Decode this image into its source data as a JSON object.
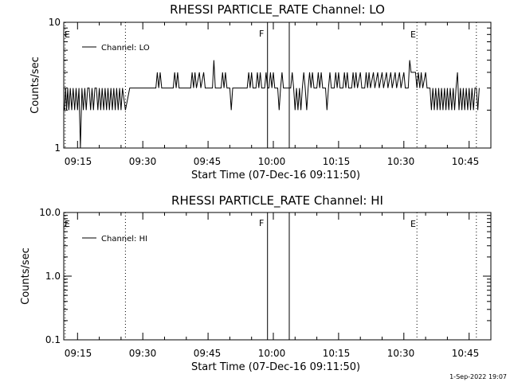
{
  "chart_data": [
    {
      "type": "line",
      "title": "RHESSI PARTICLE_RATE Channel: LO",
      "xlabel": "Start Time (07-Dec-16 09:11:50)",
      "ylabel": "Counts/sec",
      "yscale": "log",
      "ylim": [
        1,
        10
      ],
      "xlim": [
        "09:11:50",
        "10:50:00"
      ],
      "x_tick_labels": [
        "09:15",
        "09:30",
        "09:45",
        "10:00",
        "10:15",
        "10:30",
        "10:45"
      ],
      "y_tick_labels": [
        "1",
        "10"
      ],
      "legend": {
        "placement": "top-left",
        "label": "Channel: LO"
      },
      "series": [
        {
          "name": "Channel: LO",
          "points": [
            [
              "09:12:00",
              2
            ],
            [
              "09:12:15",
              3
            ],
            [
              "09:12:30",
              2
            ],
            [
              "09:12:45",
              3
            ],
            [
              "09:13:00",
              2
            ],
            [
              "09:13:20",
              3
            ],
            [
              "09:13:40",
              2
            ],
            [
              "09:14:00",
              3
            ],
            [
              "09:14:20",
              2
            ],
            [
              "09:14:40",
              3
            ],
            [
              "09:15:00",
              2
            ],
            [
              "09:15:20",
              3
            ],
            [
              "09:15:40",
              1
            ],
            [
              "09:16:00",
              3
            ],
            [
              "09:16:20",
              2
            ],
            [
              "09:16:40",
              3
            ],
            [
              "09:17:00",
              2
            ],
            [
              "09:17:20",
              3
            ],
            [
              "09:17:40",
              3
            ],
            [
              "09:18:00",
              2
            ],
            [
              "09:18:20",
              3
            ],
            [
              "09:18:40",
              2
            ],
            [
              "09:19:00",
              3
            ],
            [
              "09:19:20",
              3
            ],
            [
              "09:19:40",
              2
            ],
            [
              "09:20:00",
              3
            ],
            [
              "09:20:20",
              2
            ],
            [
              "09:20:40",
              3
            ],
            [
              "09:21:00",
              2
            ],
            [
              "09:21:20",
              3
            ],
            [
              "09:21:40",
              2
            ],
            [
              "09:22:00",
              3
            ],
            [
              "09:22:20",
              2
            ],
            [
              "09:22:40",
              3
            ],
            [
              "09:23:00",
              2
            ],
            [
              "09:23:20",
              3
            ],
            [
              "09:23:40",
              2
            ],
            [
              "09:24:00",
              3
            ],
            [
              "09:24:20",
              2
            ],
            [
              "09:24:40",
              3
            ],
            [
              "09:25:00",
              2
            ],
            [
              "09:25:20",
              3
            ],
            [
              "09:26:00",
              2
            ],
            [
              "09:27:00",
              3
            ],
            [
              "09:30:00",
              3
            ],
            [
              "09:33:00",
              3
            ],
            [
              "09:33:20",
              4
            ],
            [
              "09:33:40",
              3
            ],
            [
              "09:34:00",
              4
            ],
            [
              "09:34:20",
              3
            ],
            [
              "09:37:00",
              3
            ],
            [
              "09:37:20",
              4
            ],
            [
              "09:37:40",
              3
            ],
            [
              "09:38:00",
              4
            ],
            [
              "09:38:20",
              3
            ],
            [
              "09:41:00",
              3
            ],
            [
              "09:41:20",
              4
            ],
            [
              "09:41:40",
              3
            ],
            [
              "09:42:00",
              4
            ],
            [
              "09:42:20",
              3
            ],
            [
              "09:43:00",
              4
            ],
            [
              "09:43:20",
              3
            ],
            [
              "09:44:00",
              4
            ],
            [
              "09:44:20",
              3
            ],
            [
              "09:46:00",
              3
            ],
            [
              "09:46:20",
              5
            ],
            [
              "09:46:40",
              3
            ],
            [
              "09:48:00",
              3
            ],
            [
              "09:48:20",
              4
            ],
            [
              "09:48:40",
              3
            ],
            [
              "09:49:00",
              4
            ],
            [
              "09:49:20",
              3
            ],
            [
              "09:50:00",
              3
            ],
            [
              "09:50:20",
              2
            ],
            [
              "09:50:40",
              3
            ],
            [
              "09:54:00",
              3
            ],
            [
              "09:54:20",
              4
            ],
            [
              "09:54:40",
              3
            ],
            [
              "09:55:00",
              4
            ],
            [
              "09:55:20",
              3
            ],
            [
              "09:56:00",
              3
            ],
            [
              "09:56:20",
              4
            ],
            [
              "09:56:40",
              3
            ],
            [
              "09:57:00",
              4
            ],
            [
              "09:57:20",
              3
            ],
            [
              "09:58:00",
              3
            ],
            [
              "09:58:20",
              4
            ],
            [
              "09:58:40",
              3
            ],
            [
              "09:59:00",
              3
            ],
            [
              "09:59:20",
              4
            ],
            [
              "09:59:40",
              3
            ],
            [
              "10:00:00",
              4
            ],
            [
              "10:00:20",
              3
            ],
            [
              "10:01:00",
              3
            ],
            [
              "10:01:20",
              2
            ],
            [
              "10:01:40",
              3
            ],
            [
              "10:02:00",
              4
            ],
            [
              "10:02:20",
              3
            ],
            [
              "10:04:00",
              3
            ],
            [
              "10:04:20",
              4
            ],
            [
              "10:04:40",
              3
            ],
            [
              "10:05:00",
              2
            ],
            [
              "10:05:20",
              3
            ],
            [
              "10:05:40",
              2
            ],
            [
              "10:06:00",
              3
            ],
            [
              "10:06:20",
              2
            ],
            [
              "10:06:40",
              3
            ],
            [
              "10:07:00",
              4
            ],
            [
              "10:07:20",
              3
            ],
            [
              "10:07:40",
              2
            ],
            [
              "10:08:00",
              3
            ],
            [
              "10:08:20",
              4
            ],
            [
              "10:08:40",
              3
            ],
            [
              "10:09:00",
              4
            ],
            [
              "10:09:20",
              3
            ],
            [
              "10:10:00",
              3
            ],
            [
              "10:10:20",
              4
            ],
            [
              "10:10:40",
              3
            ],
            [
              "10:11:00",
              4
            ],
            [
              "10:11:20",
              3
            ],
            [
              "10:12:00",
              3
            ],
            [
              "10:12:20",
              2
            ],
            [
              "10:12:40",
              3
            ],
            [
              "10:13:00",
              4
            ],
            [
              "10:13:20",
              3
            ],
            [
              "10:14:00",
              3
            ],
            [
              "10:14:20",
              4
            ],
            [
              "10:14:40",
              3
            ],
            [
              "10:15:00",
              4
            ],
            [
              "10:15:20",
              3
            ],
            [
              "10:16:00",
              3
            ],
            [
              "10:16:20",
              4
            ],
            [
              "10:16:40",
              3
            ],
            [
              "10:17:00",
              4
            ],
            [
              "10:17:20",
              3
            ],
            [
              "10:18:00",
              3
            ],
            [
              "10:18:20",
              4
            ],
            [
              "10:18:40",
              3
            ],
            [
              "10:19:00",
              4
            ],
            [
              "10:19:20",
              3
            ],
            [
              "10:20:00",
              4
            ],
            [
              "10:20:20",
              3
            ],
            [
              "10:21:00",
              3
            ],
            [
              "10:21:20",
              4
            ],
            [
              "10:21:40",
              3
            ],
            [
              "10:22:00",
              4
            ],
            [
              "10:22:20",
              3
            ],
            [
              "10:23:00",
              4
            ],
            [
              "10:23:20",
              3
            ],
            [
              "10:24:00",
              4
            ],
            [
              "10:24:20",
              3
            ],
            [
              "10:25:00",
              4
            ],
            [
              "10:25:20",
              3
            ],
            [
              "10:26:00",
              4
            ],
            [
              "10:26:20",
              3
            ],
            [
              "10:27:00",
              4
            ],
            [
              "10:27:20",
              3
            ],
            [
              "10:28:00",
              4
            ],
            [
              "10:28:20",
              3
            ],
            [
              "10:29:00",
              4
            ],
            [
              "10:29:20",
              3
            ],
            [
              "10:30:00",
              4
            ],
            [
              "10:30:20",
              3
            ],
            [
              "10:31:00",
              3
            ],
            [
              "10:31:20",
              5
            ],
            [
              "10:31:40",
              4
            ],
            [
              "10:32:40",
              4
            ],
            [
              "10:33:00",
              3
            ],
            [
              "10:33:20",
              4
            ],
            [
              "10:33:40",
              3
            ],
            [
              "10:34:00",
              4
            ],
            [
              "10:34:20",
              3
            ],
            [
              "10:35:00",
              4
            ],
            [
              "10:35:20",
              3
            ],
            [
              "10:36:00",
              3
            ],
            [
              "10:36:20",
              2
            ],
            [
              "10:36:40",
              3
            ],
            [
              "10:37:00",
              2
            ],
            [
              "10:37:20",
              3
            ],
            [
              "10:37:40",
              2
            ],
            [
              "10:38:00",
              3
            ],
            [
              "10:38:20",
              2
            ],
            [
              "10:38:40",
              3
            ],
            [
              "10:39:00",
              2
            ],
            [
              "10:39:20",
              3
            ],
            [
              "10:39:40",
              2
            ],
            [
              "10:40:00",
              3
            ],
            [
              "10:40:20",
              2
            ],
            [
              "10:40:40",
              3
            ],
            [
              "10:41:00",
              2
            ],
            [
              "10:41:20",
              3
            ],
            [
              "10:41:40",
              2
            ],
            [
              "10:42:00",
              3
            ],
            [
              "10:42:20",
              4
            ],
            [
              "10:42:40",
              2
            ],
            [
              "10:43:00",
              3
            ],
            [
              "10:43:20",
              2
            ],
            [
              "10:43:40",
              3
            ],
            [
              "10:44:00",
              2
            ],
            [
              "10:44:20",
              3
            ],
            [
              "10:44:40",
              2
            ],
            [
              "10:45:00",
              3
            ],
            [
              "10:45:20",
              2
            ],
            [
              "10:45:40",
              3
            ],
            [
              "10:46:00",
              2
            ],
            [
              "10:46:20",
              3
            ],
            [
              "10:46:40",
              3
            ],
            [
              "10:47:00",
              2
            ],
            [
              "10:47:20",
              3
            ]
          ]
        }
      ],
      "event_lines": [
        {
          "time": "09:12:10",
          "style": "dotted",
          "label": "E"
        },
        {
          "time": "09:26:00",
          "style": "dotted",
          "label": ""
        },
        {
          "time": "09:58:40",
          "style": "solid",
          "label": "F"
        },
        {
          "time": "10:03:40",
          "style": "solid",
          "label": ""
        },
        {
          "time": "10:33:00",
          "style": "dotted",
          "label": "E"
        },
        {
          "time": "10:46:40",
          "style": "dotted",
          "label": ""
        }
      ]
    },
    {
      "type": "line",
      "title": "RHESSI PARTICLE_RATE Channel: HI",
      "xlabel": "Start Time (07-Dec-16 09:11:50)",
      "ylabel": "Counts/sec",
      "yscale": "log",
      "ylim": [
        0.1,
        10
      ],
      "xlim": [
        "09:11:50",
        "10:50:00"
      ],
      "x_tick_labels": [
        "09:15",
        "09:30",
        "09:45",
        "10:00",
        "10:15",
        "10:30",
        "10:45"
      ],
      "y_tick_labels": [
        "0.1",
        "1.0",
        "10.0"
      ],
      "legend": {
        "placement": "top-left",
        "label": "Channel: HI"
      },
      "series": [
        {
          "name": "Channel: HI",
          "points": []
        }
      ],
      "event_lines": [
        {
          "time": "09:12:10",
          "style": "dotted",
          "label": "E"
        },
        {
          "time": "09:26:00",
          "style": "dotted",
          "label": ""
        },
        {
          "time": "09:58:40",
          "style": "solid",
          "label": "F"
        },
        {
          "time": "10:03:40",
          "style": "solid",
          "label": ""
        },
        {
          "time": "10:33:00",
          "style": "dotted",
          "label": "E"
        },
        {
          "time": "10:46:40",
          "style": "dotted",
          "label": ""
        }
      ]
    }
  ],
  "footer": {
    "timestamp": "1-Sep-2022 19:07"
  },
  "colors": {
    "background": "#ffffff",
    "ink": "#000000"
  }
}
